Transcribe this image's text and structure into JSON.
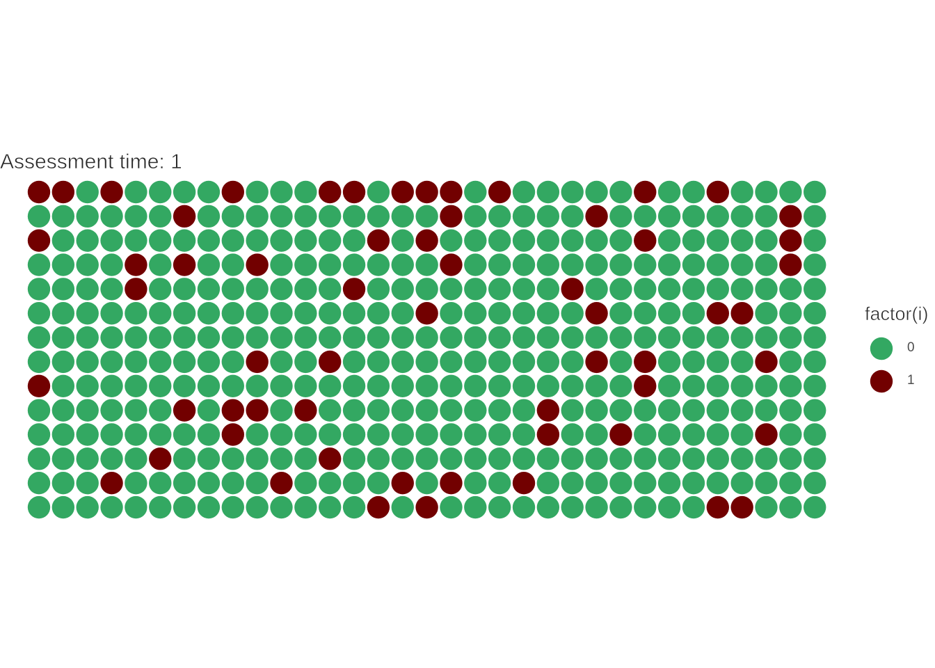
{
  "chart_data": {
    "type": "waffle",
    "title": "Assessment time: 1",
    "legend": {
      "title": "factor(i)",
      "entries": [
        {
          "label": "0",
          "color": "#33a862"
        },
        {
          "label": "1",
          "color": "#720000"
        }
      ]
    },
    "rows": 14,
    "cols": 33,
    "grid": [
      [
        1,
        1,
        0,
        1,
        0,
        0,
        0,
        0,
        1,
        0,
        0,
        0,
        1,
        1,
        0,
        1,
        1,
        1,
        0,
        1,
        0,
        0,
        0,
        0,
        0,
        1,
        0,
        0,
        1,
        0,
        0,
        0,
        0
      ],
      [
        0,
        0,
        0,
        0,
        0,
        0,
        1,
        0,
        0,
        0,
        0,
        0,
        0,
        0,
        0,
        0,
        0,
        1,
        0,
        0,
        0,
        0,
        0,
        1,
        0,
        0,
        0,
        0,
        0,
        0,
        0,
        1,
        0
      ],
      [
        1,
        0,
        0,
        0,
        0,
        0,
        0,
        0,
        0,
        0,
        0,
        0,
        0,
        0,
        1,
        0,
        1,
        0,
        0,
        0,
        0,
        0,
        0,
        0,
        0,
        1,
        0,
        0,
        0,
        0,
        0,
        1,
        0
      ],
      [
        0,
        0,
        0,
        0,
        1,
        0,
        1,
        0,
        0,
        1,
        0,
        0,
        0,
        0,
        0,
        0,
        0,
        1,
        0,
        0,
        0,
        0,
        0,
        0,
        0,
        0,
        0,
        0,
        0,
        0,
        0,
        1,
        0
      ],
      [
        0,
        0,
        0,
        0,
        1,
        0,
        0,
        0,
        0,
        0,
        0,
        0,
        0,
        1,
        0,
        0,
        0,
        0,
        0,
        0,
        0,
        0,
        1,
        0,
        0,
        0,
        0,
        0,
        0,
        0,
        0,
        0,
        0
      ],
      [
        0,
        0,
        0,
        0,
        0,
        0,
        0,
        0,
        0,
        0,
        0,
        0,
        0,
        0,
        0,
        0,
        1,
        0,
        0,
        0,
        0,
        0,
        0,
        1,
        0,
        0,
        0,
        0,
        1,
        1,
        0,
        0,
        0
      ],
      [
        0,
        0,
        0,
        0,
        0,
        0,
        0,
        0,
        0,
        0,
        0,
        0,
        0,
        0,
        0,
        0,
        0,
        0,
        0,
        0,
        0,
        0,
        0,
        0,
        0,
        0,
        0,
        0,
        0,
        0,
        0,
        0,
        0
      ],
      [
        0,
        0,
        0,
        0,
        0,
        0,
        0,
        0,
        0,
        1,
        0,
        0,
        1,
        0,
        0,
        0,
        0,
        0,
        0,
        0,
        0,
        0,
        0,
        1,
        0,
        1,
        0,
        0,
        0,
        0,
        1,
        0,
        0
      ],
      [
        1,
        0,
        0,
        0,
        0,
        0,
        0,
        0,
        0,
        0,
        0,
        0,
        0,
        0,
        0,
        0,
        0,
        0,
        0,
        0,
        0,
        0,
        0,
        0,
        0,
        1,
        0,
        0,
        0,
        0,
        0,
        0,
        0
      ],
      [
        0,
        0,
        0,
        0,
        0,
        0,
        1,
        0,
        1,
        1,
        0,
        1,
        0,
        0,
        0,
        0,
        0,
        0,
        0,
        0,
        0,
        1,
        0,
        0,
        0,
        0,
        0,
        0,
        0,
        0,
        0,
        0,
        0
      ],
      [
        0,
        0,
        0,
        0,
        0,
        0,
        0,
        0,
        1,
        0,
        0,
        0,
        0,
        0,
        0,
        0,
        0,
        0,
        0,
        0,
        0,
        1,
        0,
        0,
        1,
        0,
        0,
        0,
        0,
        0,
        1,
        0,
        0
      ],
      [
        0,
        0,
        0,
        0,
        0,
        1,
        0,
        0,
        0,
        0,
        0,
        0,
        1,
        0,
        0,
        0,
        0,
        0,
        0,
        0,
        0,
        0,
        0,
        0,
        0,
        0,
        0,
        0,
        0,
        0,
        0,
        0,
        0
      ],
      [
        0,
        0,
        0,
        1,
        0,
        0,
        0,
        0,
        0,
        0,
        1,
        0,
        0,
        0,
        0,
        1,
        0,
        1,
        0,
        0,
        1,
        0,
        0,
        0,
        0,
        0,
        0,
        0,
        0,
        0,
        0,
        0,
        0
      ],
      [
        0,
        0,
        0,
        0,
        0,
        0,
        0,
        0,
        0,
        0,
        0,
        0,
        0,
        0,
        1,
        0,
        1,
        0,
        0,
        0,
        0,
        0,
        0,
        0,
        0,
        0,
        0,
        0,
        1,
        1,
        0,
        0,
        0
      ]
    ]
  }
}
